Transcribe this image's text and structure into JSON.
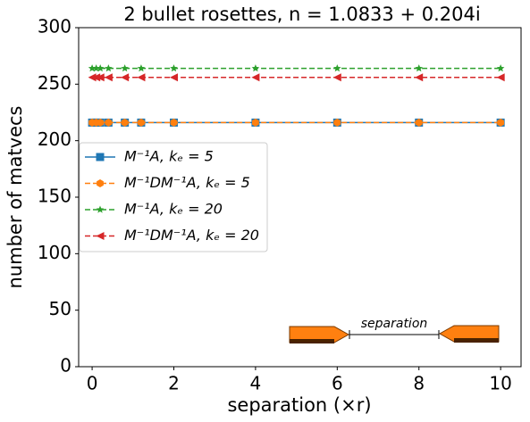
{
  "chart_data": {
    "type": "line",
    "title": "2 bullet rosettes, n = 1.0833 + 0.204i",
    "x_label": "separation (×r)",
    "y_label": "number of matvecs",
    "annotation": "separation",
    "x": [
      0,
      0.1,
      0.2,
      0.4,
      0.8,
      1.2,
      2,
      4,
      6,
      8,
      10
    ],
    "series": [
      {
        "name": "M⁻¹A, kₑ = 5",
        "color": "#1f77b4",
        "marker": "square",
        "linestyle": "solid",
        "values": [
          216,
          216,
          216,
          216,
          216,
          216,
          216,
          216,
          216,
          216,
          216
        ]
      },
      {
        "name": "M⁻¹DM⁻¹A, kₑ = 5",
        "color": "#ff7f0e",
        "marker": "hexagon",
        "linestyle": "dashed",
        "values": [
          216,
          216,
          216,
          216,
          216,
          216,
          216,
          216,
          216,
          216,
          216
        ]
      },
      {
        "name": "M⁻¹A, kₑ = 20",
        "color": "#2ca02c",
        "marker": "star",
        "linestyle": "dashed",
        "values": [
          264,
          264,
          264,
          264,
          264,
          264,
          264,
          264,
          264,
          264,
          264
        ]
      },
      {
        "name": "M⁻¹DM⁻¹A, kₑ = 20",
        "color": "#d62728",
        "marker": "triangle-left",
        "linestyle": "dashed",
        "values": [
          256,
          256,
          256,
          256,
          256,
          256,
          256,
          256,
          256,
          256,
          256
        ]
      }
    ],
    "xlim": [
      -0.33,
      10.5
    ],
    "ylim": [
      0,
      300
    ],
    "xticks": [
      0,
      2,
      4,
      6,
      8,
      10
    ],
    "yticks": [
      0,
      50,
      100,
      150,
      200,
      250,
      300
    ],
    "grid": false,
    "legend": "center left"
  }
}
